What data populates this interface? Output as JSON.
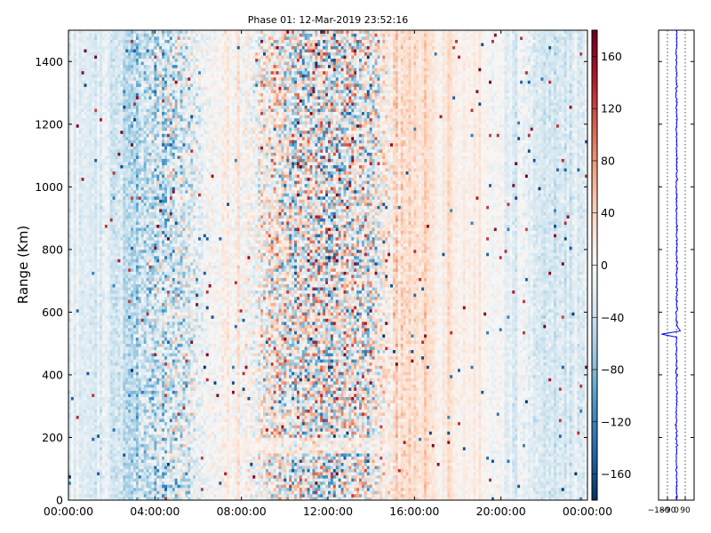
{
  "chart_data": [
    {
      "type": "heatmap",
      "title": "Phase 01: 12-Mar-2019 23:52:16",
      "xlabel": "",
      "ylabel": "Range (Km)",
      "x_tick_labels": [
        "00:00:00",
        "04:00:00",
        "08:00:00",
        "12:00:00",
        "16:00:00",
        "20:00:00",
        "00:00:00"
      ],
      "x_ticks_hours": [
        0,
        4,
        8,
        12,
        16,
        20,
        24
      ],
      "xlim_hours": [
        0,
        24
      ],
      "y_ticks": [
        0,
        200,
        400,
        600,
        800,
        1000,
        1200,
        1400
      ],
      "ylim": [
        0,
        1500
      ],
      "colormap": "RdBu_r",
      "colorbar": {
        "ticks": [
          -160,
          -120,
          -80,
          -40,
          0,
          40,
          80,
          120,
          160
        ],
        "tick_labels": [
          "−160",
          "−120",
          "−80",
          "−40",
          "0",
          "40",
          "80",
          "120",
          "160"
        ],
        "range": [
          -180,
          180
        ]
      },
      "column_profile_hours": [
        0.0,
        1.0,
        2.0,
        2.8,
        3.0,
        3.5,
        4.0,
        4.6,
        5.2,
        5.8,
        6.3,
        7.0,
        7.8,
        8.5,
        9.0,
        9.5,
        10.0,
        10.5,
        11.0,
        11.5,
        12.0,
        12.5,
        13.0,
        13.5,
        14.0,
        14.5,
        15.0,
        15.5,
        16.0,
        17.0,
        18.0,
        19.0,
        20.0,
        21.0,
        22.0,
        23.0,
        24.0
      ],
      "column_mean_phase_deg": [
        -10,
        -15,
        -25,
        -40,
        -45,
        -40,
        -30,
        -25,
        -30,
        -20,
        -5,
        5,
        10,
        8,
        5,
        10,
        5,
        0,
        -5,
        5,
        -20,
        -10,
        5,
        0,
        -10,
        10,
        30,
        35,
        30,
        20,
        15,
        5,
        -5,
        -15,
        -25,
        -30,
        -20
      ],
      "column_noise_deg": [
        15,
        15,
        20,
        30,
        45,
        50,
        70,
        80,
        75,
        50,
        25,
        20,
        20,
        35,
        70,
        90,
        100,
        110,
        120,
        125,
        130,
        120,
        115,
        110,
        100,
        60,
        30,
        25,
        20,
        15,
        12,
        12,
        15,
        20,
        20,
        20,
        20
      ],
      "notable_features": {
        "horizontal_band_km": [
          150,
          200
        ],
        "horizontal_band_hours": [
          7.5,
          15.5
        ]
      }
    },
    {
      "type": "line",
      "title": "",
      "xlabel": "",
      "ylabel": "",
      "x_tick_labels": [
        "−180",
        "−90",
        "0",
        "90"
      ],
      "x_ticks": [
        -180,
        -90,
        0,
        90
      ],
      "xlim": [
        -180,
        180
      ],
      "ylim": [
        0,
        1500
      ],
      "series": [
        {
          "color": "#0000ff",
          "range_km": [
            0,
            100,
            200,
            300,
            400,
            500,
            520,
            530,
            540,
            560,
            600,
            700,
            800,
            900,
            1000,
            1100,
            1200,
            1300,
            1400,
            1500
          ],
          "phase_deg": [
            5,
            2,
            0,
            4,
            3,
            2,
            5,
            -150,
            40,
            3,
            4,
            5,
            6,
            3,
            2,
            4,
            3,
            2,
            3,
            2
          ]
        }
      ]
    }
  ]
}
